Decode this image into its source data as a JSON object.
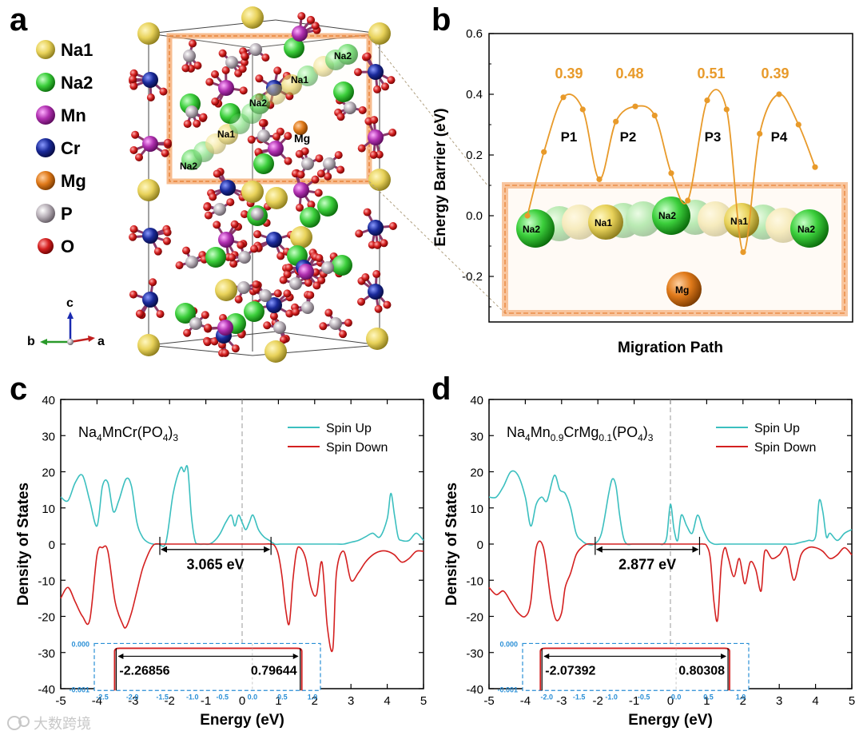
{
  "panels": {
    "a": "a",
    "b": "b",
    "c": "c",
    "d": "d"
  },
  "panel_a": {
    "legend": [
      {
        "label": "Na1",
        "color": "#e8d25a"
      },
      {
        "label": "Na2",
        "color": "#3ccf3c"
      },
      {
        "label": "Mn",
        "color": "#b030b0"
      },
      {
        "label": "Cr",
        "color": "#1a2a9a"
      },
      {
        "label": "Mg",
        "color": "#e07a1a"
      },
      {
        "label": "P",
        "color": "#b8b0b8"
      },
      {
        "label": "O",
        "color": "#d42020"
      }
    ],
    "axes": {
      "c": "c",
      "b": "b",
      "a": "a"
    },
    "path_labels": [
      "Na2",
      "Na1",
      "Na2",
      "Na1",
      "Mg",
      "Na2"
    ]
  },
  "chart_data": [
    {
      "id": "b",
      "type": "line",
      "title": "",
      "xlabel": "Migration Path",
      "ylabel": "Energy Barrier (eV)",
      "ylim": [
        -0.35,
        0.6
      ],
      "yticks": [
        "0.6",
        "0.4",
        "0.2",
        "0.0",
        "-0.2"
      ],
      "ytick_values": [
        0.6,
        0.4,
        0.2,
        0.0,
        -0.2
      ],
      "x": [
        0,
        0.23,
        0.5,
        0.77,
        1.0,
        1.23,
        1.5,
        1.77,
        2.0,
        2.23,
        2.5,
        2.77,
        3.0,
        3.23,
        3.5,
        3.77,
        4.0
      ],
      "values": [
        0.0,
        0.21,
        0.39,
        0.35,
        0.12,
        0.31,
        0.36,
        0.33,
        0.14,
        0.05,
        0.38,
        0.35,
        -0.12,
        0.27,
        0.4,
        0.3,
        0.16
      ],
      "barriers": [
        "0.39",
        "0.48",
        "0.51",
        "0.39"
      ],
      "paths": [
        "P1",
        "P2",
        "P3",
        "P4"
      ],
      "inset_atoms": [
        "Na2",
        "Na1",
        "Na2",
        "Na1",
        "Na2",
        "Mg"
      ]
    },
    {
      "id": "c",
      "type": "line",
      "xlabel": "Energy (eV)",
      "ylabel": "Density of States",
      "xlim": [
        -5,
        5
      ],
      "ylim": [
        -40,
        40
      ],
      "xticks": [
        "-5",
        "-4",
        "-3",
        "-2",
        "-1",
        "0",
        "1",
        "2",
        "3",
        "4",
        "5"
      ],
      "yticks": [
        "40",
        "30",
        "20",
        "10",
        "0",
        "-10",
        "-20",
        "-30",
        "-40"
      ],
      "formula": {
        "parts": [
          "Na",
          "4",
          "MnCr(PO",
          "4",
          ")",
          "3"
        ]
      },
      "series": [
        {
          "name": "Spin Up",
          "color": "#3bbfbf",
          "x": [
            -5,
            -4.8,
            -4.6,
            -4.4,
            -4.2,
            -4.0,
            -3.85,
            -3.7,
            -3.55,
            -3.4,
            -3.2,
            -3.05,
            -2.9,
            -2.75,
            -2.6,
            -2.45,
            -2.3,
            -2.1,
            -1.9,
            -1.7,
            -1.6,
            -1.5,
            -1.4,
            -1.3,
            -1.2,
            -1.05,
            -0.9,
            -0.75,
            -0.6,
            -0.45,
            -0.3,
            -0.2,
            -0.1,
            0.0,
            0.1,
            0.2,
            0.3,
            0.45,
            0.6,
            0.75,
            0.9,
            1.05,
            1.2,
            1.4,
            1.6,
            1.8,
            2.0,
            2.2,
            2.4,
            2.6,
            2.8,
            3.0,
            3.2,
            3.4,
            3.6,
            3.8,
            4.0,
            4.1,
            4.2,
            4.3,
            4.4,
            4.6,
            4.8,
            5.0
          ],
          "y": [
            13,
            12,
            17,
            19,
            12,
            5,
            16,
            17,
            9,
            12,
            18,
            16,
            6,
            2,
            0.5,
            0,
            0,
            0.5,
            14,
            21,
            20,
            21,
            8,
            1,
            0,
            0,
            0,
            1,
            3,
            6,
            8,
            5,
            8,
            6,
            4,
            6,
            8,
            4,
            2,
            1,
            0,
            0,
            0,
            0,
            0,
            0,
            0,
            0,
            0,
            0,
            0,
            0.5,
            1,
            2,
            3,
            2,
            7,
            14,
            8,
            2,
            1,
            1,
            3,
            1
          ]
        },
        {
          "name": "Spin Down",
          "color": "#d42020",
          "x": [
            -5,
            -4.8,
            -4.6,
            -4.4,
            -4.2,
            -4.0,
            -3.85,
            -3.7,
            -3.5,
            -3.3,
            -3.2,
            -3.05,
            -2.9,
            -2.75,
            -2.6,
            -2.5,
            -2.4,
            -2.2,
            -1.5,
            -0.5,
            0.5,
            0.79,
            0.9,
            1.0,
            1.1,
            1.2,
            1.3,
            1.4,
            1.5,
            1.6,
            1.75,
            1.9,
            2.05,
            2.2,
            2.35,
            2.5,
            2.6,
            2.8,
            3.0,
            3.2,
            3.4,
            3.6,
            3.8,
            4.0,
            4.2,
            4.4,
            4.6,
            4.8,
            5.0
          ],
          "y": [
            -15,
            -12,
            -16,
            -20,
            -21,
            -3,
            -1,
            -2,
            -16,
            -22,
            -23,
            -19,
            -13,
            -7,
            -3,
            -1,
            0,
            0,
            0,
            0,
            0,
            0,
            -0.5,
            -3,
            -9,
            -18,
            -22,
            -10,
            -2,
            -1,
            -4,
            -12,
            -14,
            -5,
            -23,
            -29,
            -8,
            -2,
            -10,
            -8,
            -5,
            -3,
            -2,
            -2,
            -3,
            -5,
            -4,
            -2,
            -2
          ]
        }
      ],
      "gap_label": "3.065 eV",
      "gap_range": [
        -2.26856,
        0.79644
      ],
      "inset": {
        "ytick_top": "0.000",
        "ytick_bottom": "-0.001",
        "xticks": [
          "-2.5",
          "-2.0",
          "-1.5",
          "-1.0",
          "-0.5",
          "0.0",
          "0.5",
          "1.0"
        ],
        "xlim": [
          -2.5,
          1.0
        ],
        "left_label": "-2.26856",
        "right_label": "0.79644"
      }
    },
    {
      "id": "d",
      "type": "line",
      "xlabel": "Energy (eV)",
      "ylabel": "Density of States",
      "xlim": [
        -5,
        5
      ],
      "ylim": [
        -40,
        40
      ],
      "xticks": [
        "-5",
        "-4",
        "-3",
        "-2",
        "-1",
        "0",
        "1",
        "2",
        "3",
        "4",
        "5"
      ],
      "yticks": [
        "40",
        "30",
        "20",
        "10",
        "0",
        "-10",
        "-20",
        "-30",
        "-40"
      ],
      "formula": {
        "parts": [
          "Na",
          "4",
          "Mn",
          "0.9",
          "CrMg",
          "0.1",
          "(PO",
          "4",
          ")",
          "3"
        ]
      },
      "series": [
        {
          "name": "Spin Up",
          "color": "#3bbfbf",
          "x": [
            -5,
            -4.8,
            -4.6,
            -4.4,
            -4.2,
            -4.0,
            -3.85,
            -3.7,
            -3.55,
            -3.4,
            -3.2,
            -3.05,
            -2.9,
            -2.75,
            -2.6,
            -2.45,
            -2.3,
            -2.1,
            -1.9,
            -1.7,
            -1.6,
            -1.5,
            -1.4,
            -1.3,
            -1.2,
            -1.05,
            -0.9,
            -0.75,
            -0.6,
            -0.45,
            -0.3,
            -0.2,
            -0.1,
            0.0,
            0.1,
            0.2,
            0.3,
            0.45,
            0.6,
            0.75,
            0.9,
            1.05,
            1.2,
            1.4,
            1.6,
            1.8,
            2.0,
            2.2,
            2.4,
            2.6,
            2.8,
            3.0,
            3.2,
            3.4,
            3.6,
            3.8,
            4.0,
            4.1,
            4.2,
            4.3,
            4.4,
            4.6,
            4.8,
            5.0
          ],
          "y": [
            13,
            13,
            16,
            20,
            19,
            13,
            5,
            11,
            13,
            12,
            19,
            15,
            14,
            10,
            3,
            1,
            0,
            0,
            3,
            14,
            18,
            16,
            8,
            2,
            0,
            0,
            0,
            0,
            0,
            0,
            0,
            0,
            2,
            11,
            4,
            1,
            8,
            5,
            3,
            8,
            4,
            1,
            0,
            0,
            0,
            0,
            0,
            0,
            0,
            0,
            0,
            0,
            0,
            0,
            0.5,
            1,
            2,
            12,
            9,
            2,
            3,
            1,
            3,
            4
          ]
        },
        {
          "name": "Spin Down",
          "color": "#d42020",
          "x": [
            -5,
            -4.8,
            -4.6,
            -4.4,
            -4.2,
            -4.0,
            -3.85,
            -3.7,
            -3.5,
            -3.3,
            -3.15,
            -3.0,
            -2.9,
            -2.75,
            -2.6,
            -2.45,
            -2.3,
            -2.07,
            -1.5,
            -0.5,
            0.5,
            0.8,
            0.9,
            1.0,
            1.1,
            1.2,
            1.3,
            1.4,
            1.5,
            1.6,
            1.75,
            1.9,
            2.05,
            2.2,
            2.35,
            2.5,
            2.6,
            2.8,
            3.0,
            3.2,
            3.4,
            3.6,
            3.8,
            4.0,
            4.2,
            4.4,
            4.6,
            4.8,
            5.0
          ],
          "y": [
            -12,
            -14,
            -13,
            -16,
            -19,
            -20,
            -16,
            -1,
            -1,
            -15,
            -21,
            -19,
            -12,
            -8,
            -3,
            -1,
            0,
            0,
            0,
            0,
            0,
            0,
            0,
            -0.5,
            -4,
            -16,
            -21,
            -6,
            -1,
            -4,
            -9,
            -4,
            -11,
            -5,
            -7,
            -13,
            -2,
            -4,
            -3,
            -1,
            -10,
            -3,
            -1,
            -1,
            -2,
            -4,
            -3,
            -1,
            -3
          ]
        }
      ],
      "gap_label": "2.877 eV",
      "gap_range": [
        -2.07392,
        0.80308
      ],
      "inset": {
        "ytick_top": "0.000",
        "ytick_bottom": "-0.001",
        "xticks": [
          "-2.0",
          "-1.5",
          "-1.0",
          "-0.5",
          "0.0",
          "0.5",
          "1.0"
        ],
        "xlim": [
          -2.25,
          1.0
        ],
        "left_label": "-2.07392",
        "right_label": "0.80308"
      }
    }
  ],
  "watermark": "大数跨境",
  "colors": {
    "orange": "#e89a2a",
    "spin_up": "#3bbfbf",
    "spin_down": "#d42020",
    "inset_border": "#2a8fd6"
  }
}
